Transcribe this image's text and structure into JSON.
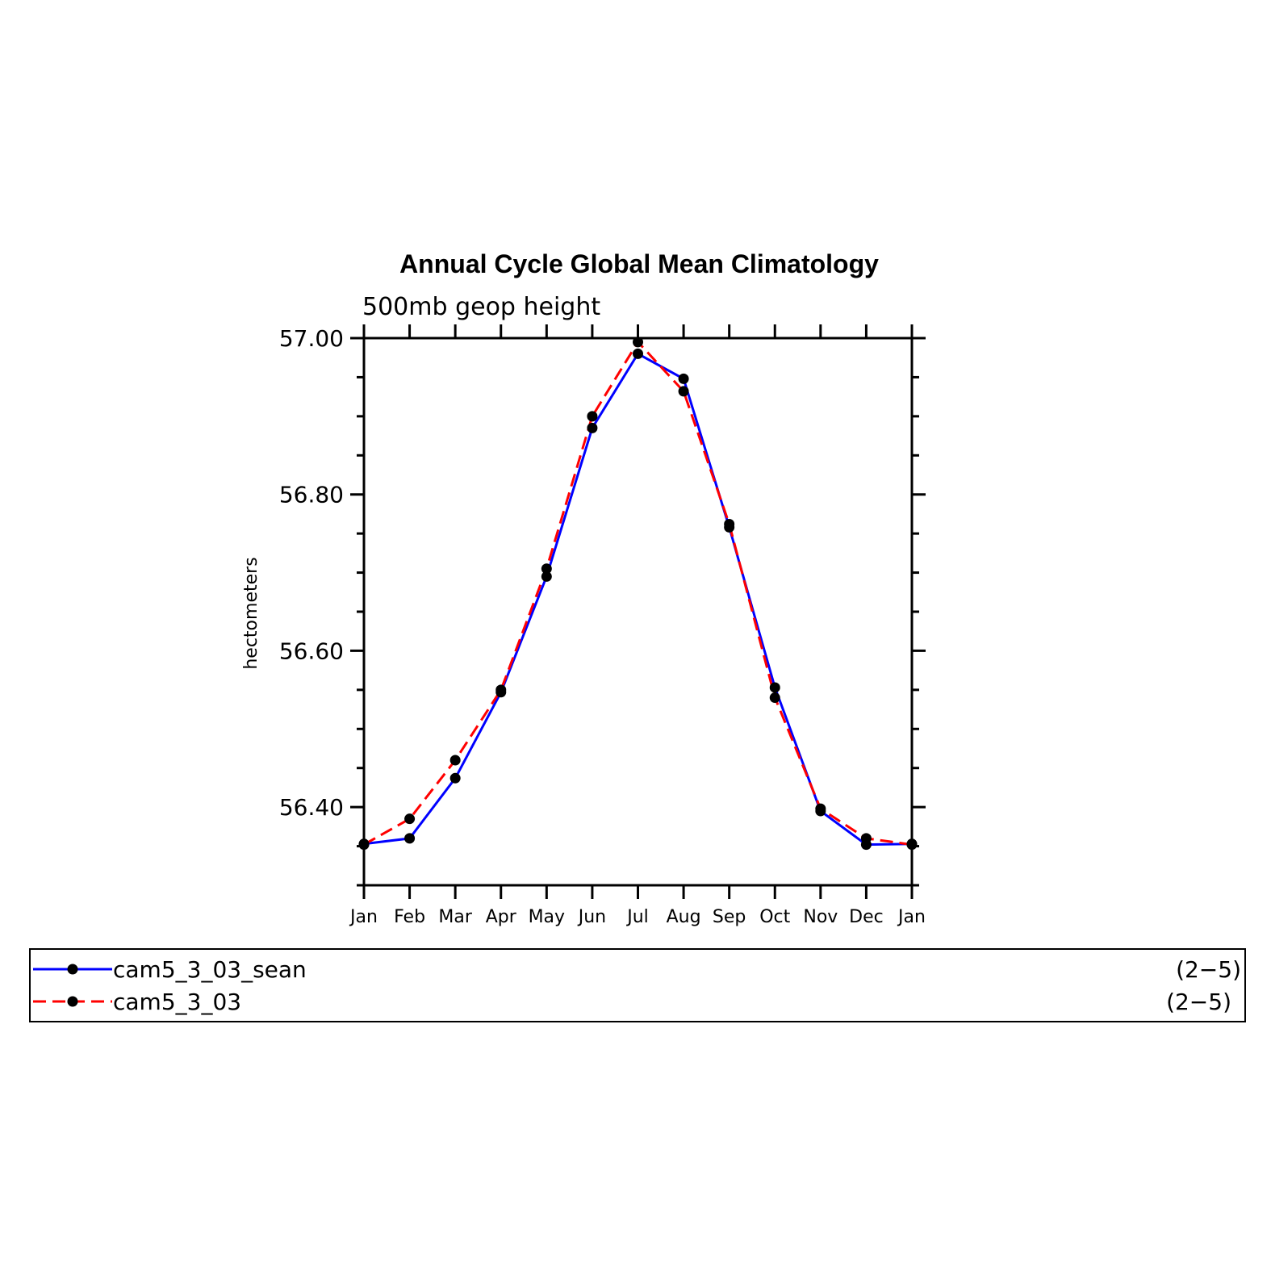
{
  "chart_data": {
    "type": "line",
    "title": "Annual Cycle Global Mean Climatology",
    "subtitle": "500mb geop height",
    "ylabel": "hectometers",
    "xlabel": "",
    "categories": [
      "Jan",
      "Feb",
      "Mar",
      "Apr",
      "May",
      "Jun",
      "Jul",
      "Aug",
      "Sep",
      "Oct",
      "Nov",
      "Dec",
      "Jan"
    ],
    "ylim": [
      56.3,
      57.0
    ],
    "yticks": [
      "57.00",
      "56.80",
      "56.60",
      "56.40"
    ],
    "ytick_values": [
      57.0,
      56.8,
      56.6,
      56.4
    ],
    "grid": false,
    "legend_position": "bottom",
    "series": [
      {
        "name": "cam5_3_03_sean",
        "range_label": "(2−5)",
        "color": "#0000ff",
        "dash": "solid",
        "values": [
          56.353,
          56.36,
          56.437,
          56.547,
          56.695,
          56.885,
          56.98,
          56.948,
          56.758,
          56.553,
          56.395,
          56.352,
          56.353
        ]
      },
      {
        "name": "cam5_3_03",
        "range_label": "(2−5)",
        "color": "#ff0000",
        "dash": "dashed",
        "values": [
          56.352,
          56.385,
          56.46,
          56.55,
          56.705,
          56.9,
          56.995,
          56.932,
          56.762,
          56.54,
          56.398,
          56.36,
          56.352
        ]
      }
    ]
  }
}
